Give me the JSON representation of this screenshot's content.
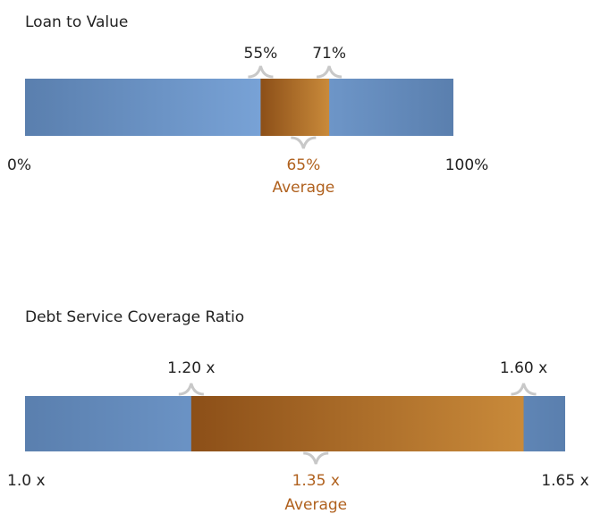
{
  "chart_data": [
    {
      "type": "range",
      "title": "Loan to Value",
      "xlim": [
        0,
        100
      ],
      "xticks": [
        {
          "value": 0,
          "label": "0%"
        },
        {
          "value": 100,
          "label": "100%"
        }
      ],
      "range": [
        55,
        71
      ],
      "range_labels": [
        "55%",
        "71%"
      ],
      "average": 65,
      "average_label": "65%",
      "average_text": "Average",
      "color": "#6d95c9",
      "range_color": "#b0712c"
    },
    {
      "type": "range",
      "title": "Debt Service Coverage Ratio",
      "xlim": [
        1.0,
        1.65
      ],
      "xticks": [
        {
          "value": 1.0,
          "label": "1.0 x"
        },
        {
          "value": 1.65,
          "label": "1.65 x"
        }
      ],
      "range": [
        1.2,
        1.6
      ],
      "range_labels": [
        "1.20 x",
        "1.60 x"
      ],
      "average": 1.35,
      "average_label": "1.35 x",
      "average_text": "Average",
      "color": "#6d95c9",
      "range_color": "#b0712c"
    }
  ]
}
